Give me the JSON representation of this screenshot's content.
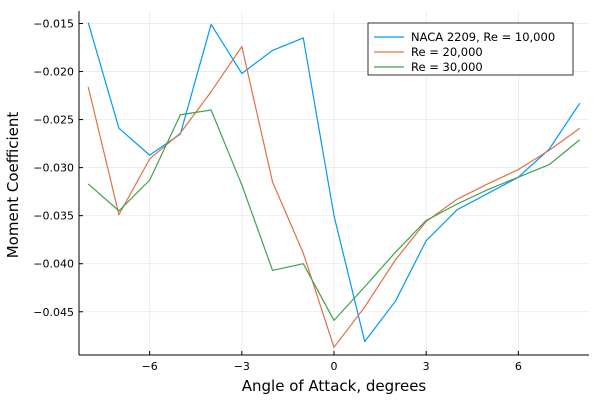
{
  "chart_data": {
    "type": "line",
    "xlabel": "Angle of Attack, degrees",
    "ylabel": "Moment Coefficient",
    "xlim": [
      -8.3,
      8.3
    ],
    "ylim": [
      -0.0495,
      -0.0137
    ],
    "x_ticks": [
      -6,
      -3,
      0,
      3,
      6
    ],
    "x_tick_labels": [
      "−6",
      "−3",
      "0",
      "3",
      "6"
    ],
    "y_ticks": [
      -0.015,
      -0.02,
      -0.025,
      -0.03,
      -0.035,
      -0.04,
      -0.045
    ],
    "y_tick_labels": [
      "−0.015",
      "−0.020",
      "−0.025",
      "−0.030",
      "−0.035",
      "−0.040",
      "−0.045"
    ],
    "grid": true,
    "legend_position": "top-right",
    "x": [
      -8,
      -7,
      -6,
      -5,
      -4,
      -3,
      -2,
      -1,
      0,
      1,
      2,
      3,
      4,
      5,
      6,
      7,
      8
    ],
    "series": [
      {
        "name": "NACA 2209, Re = 10,000",
        "color": "#009AFA",
        "values": [
          -0.0149,
          -0.0259,
          -0.0287,
          -0.0265,
          -0.0151,
          -0.0202,
          -0.0178,
          -0.0165,
          -0.035,
          -0.0481,
          -0.0439,
          -0.0376,
          -0.0344,
          -0.0327,
          -0.031,
          -0.0281,
          -0.0233
        ]
      },
      {
        "name": "Re = 20,000",
        "color": "#E26F46",
        "values": [
          -0.0216,
          -0.0349,
          -0.0291,
          -0.0264,
          -0.0221,
          -0.0174,
          -0.0315,
          -0.0389,
          -0.0487,
          -0.0445,
          -0.0396,
          -0.0356,
          -0.0333,
          -0.0317,
          -0.0302,
          -0.0282,
          -0.0259
        ]
      },
      {
        "name": "Re = 30,000",
        "color": "#3DA44D",
        "values": [
          -0.0317,
          -0.0345,
          -0.0313,
          -0.0245,
          -0.024,
          -0.0318,
          -0.0407,
          -0.04,
          -0.0459,
          -0.0424,
          -0.0388,
          -0.0355,
          -0.0338,
          -0.0323,
          -0.031,
          -0.0297,
          -0.0271
        ]
      }
    ]
  }
}
